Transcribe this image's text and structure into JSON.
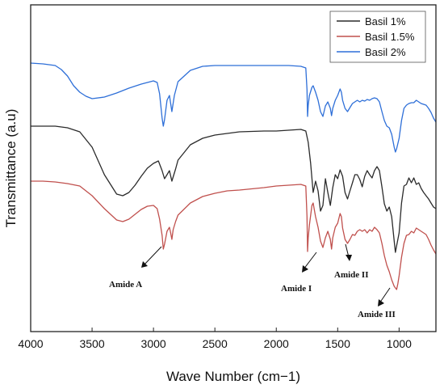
{
  "chart_data": {
    "type": "line",
    "title": "",
    "xlabel": "Wave Number (cm−1)",
    "ylabel": "Transmittance (a.u)",
    "xlim": [
      4000,
      700
    ],
    "x_reversed": true,
    "y_ticks_shown": false,
    "y_units": "arbitrary, offset traces",
    "grid": false,
    "legend_position": "top-right",
    "x_ticks": [
      "4000",
      "3500",
      "3000",
      "2500",
      "2000",
      "1500",
      "1000"
    ],
    "x_tick_values": [
      4000,
      3500,
      3000,
      2500,
      2000,
      1500,
      1000
    ],
    "series": [
      {
        "name": "Basil 1%",
        "color": "#2b2b2b",
        "points": [
          [
            4000,
            150
          ],
          [
            3900,
            150
          ],
          [
            3800,
            150
          ],
          [
            3700,
            152
          ],
          [
            3600,
            157
          ],
          [
            3500,
            176
          ],
          [
            3400,
            210
          ],
          [
            3300,
            234
          ],
          [
            3250,
            236
          ],
          [
            3200,
            232
          ],
          [
            3150,
            223
          ],
          [
            3100,
            212
          ],
          [
            3050,
            202
          ],
          [
            3000,
            196
          ],
          [
            2960,
            193
          ],
          [
            2930,
            205
          ],
          [
            2910,
            215
          ],
          [
            2890,
            210
          ],
          [
            2870,
            205
          ],
          [
            2850,
            218
          ],
          [
            2820,
            203
          ],
          [
            2800,
            192
          ],
          [
            2700,
            173
          ],
          [
            2600,
            165
          ],
          [
            2500,
            161
          ],
          [
            2300,
            157
          ],
          [
            2100,
            156
          ],
          [
            2000,
            156
          ],
          [
            1900,
            155
          ],
          [
            1800,
            154
          ],
          [
            1760,
            156
          ],
          [
            1740,
            170
          ],
          [
            1720,
            196
          ],
          [
            1700,
            232
          ],
          [
            1680,
            218
          ],
          [
            1660,
            230
          ],
          [
            1640,
            255
          ],
          [
            1620,
            248
          ],
          [
            1600,
            215
          ],
          [
            1580,
            232
          ],
          [
            1560,
            248
          ],
          [
            1540,
            226
          ],
          [
            1520,
            210
          ],
          [
            1500,
            215
          ],
          [
            1480,
            204
          ],
          [
            1460,
            212
          ],
          [
            1440,
            232
          ],
          [
            1420,
            240
          ],
          [
            1400,
            230
          ],
          [
            1380,
            220
          ],
          [
            1360,
            210
          ],
          [
            1340,
            210
          ],
          [
            1320,
            216
          ],
          [
            1300,
            225
          ],
          [
            1280,
            212
          ],
          [
            1260,
            205
          ],
          [
            1240,
            210
          ],
          [
            1220,
            214
          ],
          [
            1200,
            205
          ],
          [
            1180,
            200
          ],
          [
            1160,
            205
          ],
          [
            1140,
            225
          ],
          [
            1120,
            246
          ],
          [
            1100,
            255
          ],
          [
            1080,
            250
          ],
          [
            1060,
            262
          ],
          [
            1040,
            292
          ],
          [
            1030,
            306
          ],
          [
            1020,
            298
          ],
          [
            1000,
            282
          ],
          [
            980,
            245
          ],
          [
            960,
            224
          ],
          [
            940,
            222
          ],
          [
            920,
            214
          ],
          [
            900,
            220
          ],
          [
            880,
            214
          ],
          [
            860,
            222
          ],
          [
            840,
            220
          ],
          [
            820,
            227
          ],
          [
            800,
            232
          ],
          [
            780,
            236
          ],
          [
            760,
            240
          ],
          [
            740,
            245
          ],
          [
            720,
            250
          ],
          [
            700,
            252
          ]
        ]
      },
      {
        "name": "Basil 1.5%",
        "color": "#c0504d",
        "points": [
          [
            4000,
            218
          ],
          [
            3900,
            218
          ],
          [
            3800,
            219
          ],
          [
            3700,
            221
          ],
          [
            3600,
            224
          ],
          [
            3500,
            236
          ],
          [
            3400,
            252
          ],
          [
            3300,
            266
          ],
          [
            3250,
            268
          ],
          [
            3200,
            265
          ],
          [
            3150,
            259
          ],
          [
            3100,
            253
          ],
          [
            3050,
            249
          ],
          [
            3000,
            248
          ],
          [
            2970,
            252
          ],
          [
            2950,
            265
          ],
          [
            2930,
            285
          ],
          [
            2920,
            302
          ],
          [
            2910,
            296
          ],
          [
            2890,
            280
          ],
          [
            2870,
            275
          ],
          [
            2860,
            282
          ],
          [
            2850,
            290
          ],
          [
            2840,
            278
          ],
          [
            2820,
            268
          ],
          [
            2800,
            260
          ],
          [
            2700,
            245
          ],
          [
            2600,
            237
          ],
          [
            2500,
            233
          ],
          [
            2400,
            230
          ],
          [
            2300,
            229
          ],
          [
            2100,
            226
          ],
          [
            2000,
            224
          ],
          [
            1900,
            223
          ],
          [
            1800,
            222
          ],
          [
            1760,
            224
          ],
          [
            1750,
            262
          ],
          [
            1745,
            305
          ],
          [
            1740,
            288
          ],
          [
            1730,
            272
          ],
          [
            1710,
            248
          ],
          [
            1700,
            245
          ],
          [
            1680,
            262
          ],
          [
            1660,
            275
          ],
          [
            1640,
            292
          ],
          [
            1620,
            300
          ],
          [
            1600,
            288
          ],
          [
            1580,
            280
          ],
          [
            1560,
            290
          ],
          [
            1550,
            302
          ],
          [
            1540,
            288
          ],
          [
            1520,
            275
          ],
          [
            1500,
            270
          ],
          [
            1480,
            258
          ],
          [
            1470,
            262
          ],
          [
            1460,
            276
          ],
          [
            1440,
            290
          ],
          [
            1420,
            295
          ],
          [
            1400,
            290
          ],
          [
            1380,
            284
          ],
          [
            1360,
            285
          ],
          [
            1340,
            280
          ],
          [
            1320,
            278
          ],
          [
            1300,
            280
          ],
          [
            1280,
            278
          ],
          [
            1260,
            282
          ],
          [
            1240,
            278
          ],
          [
            1220,
            280
          ],
          [
            1200,
            275
          ],
          [
            1180,
            278
          ],
          [
            1160,
            282
          ],
          [
            1140,
            295
          ],
          [
            1120,
            310
          ],
          [
            1100,
            322
          ],
          [
            1080,
            330
          ],
          [
            1060,
            340
          ],
          [
            1040,
            348
          ],
          [
            1020,
            352
          ],
          [
            1010,
            345
          ],
          [
            1000,
            335
          ],
          [
            980,
            312
          ],
          [
            960,
            295
          ],
          [
            940,
            285
          ],
          [
            920,
            284
          ],
          [
            900,
            280
          ],
          [
            880,
            282
          ],
          [
            860,
            276
          ],
          [
            840,
            278
          ],
          [
            820,
            280
          ],
          [
            800,
            282
          ],
          [
            780,
            284
          ],
          [
            760,
            290
          ],
          [
            740,
            297
          ],
          [
            720,
            303
          ],
          [
            700,
            308
          ]
        ]
      },
      {
        "name": "Basil 2%",
        "color": "#2e6fd8",
        "points": [
          [
            4000,
            72
          ],
          [
            3900,
            73
          ],
          [
            3800,
            75
          ],
          [
            3750,
            80
          ],
          [
            3700,
            88
          ],
          [
            3650,
            100
          ],
          [
            3600,
            108
          ],
          [
            3550,
            113
          ],
          [
            3500,
            116
          ],
          [
            3400,
            114
          ],
          [
            3300,
            109
          ],
          [
            3200,
            103
          ],
          [
            3100,
            98
          ],
          [
            3000,
            94
          ],
          [
            2970,
            96
          ],
          [
            2950,
            110
          ],
          [
            2930,
            140
          ],
          [
            2920,
            150
          ],
          [
            2910,
            142
          ],
          [
            2890,
            118
          ],
          [
            2870,
            112
          ],
          [
            2860,
            122
          ],
          [
            2850,
            132
          ],
          [
            2830,
            112
          ],
          [
            2800,
            95
          ],
          [
            2700,
            81
          ],
          [
            2600,
            76
          ],
          [
            2500,
            75
          ],
          [
            2300,
            75
          ],
          [
            2000,
            75
          ],
          [
            1900,
            75
          ],
          [
            1800,
            76
          ],
          [
            1760,
            78
          ],
          [
            1750,
            105
          ],
          [
            1745,
            138
          ],
          [
            1740,
            124
          ],
          [
            1730,
            112
          ],
          [
            1710,
            102
          ],
          [
            1700,
            100
          ],
          [
            1680,
            108
          ],
          [
            1660,
            118
          ],
          [
            1640,
            132
          ],
          [
            1620,
            138
          ],
          [
            1600,
            125
          ],
          [
            1580,
            120
          ],
          [
            1560,
            128
          ],
          [
            1550,
            137
          ],
          [
            1540,
            128
          ],
          [
            1520,
            118
          ],
          [
            1500,
            112
          ],
          [
            1480,
            104
          ],
          [
            1470,
            108
          ],
          [
            1460,
            118
          ],
          [
            1440,
            128
          ],
          [
            1420,
            132
          ],
          [
            1400,
            127
          ],
          [
            1380,
            122
          ],
          [
            1360,
            120
          ],
          [
            1340,
            118
          ],
          [
            1320,
            120
          ],
          [
            1300,
            118
          ],
          [
            1280,
            119
          ],
          [
            1260,
            117
          ],
          [
            1240,
            118
          ],
          [
            1220,
            116
          ],
          [
            1200,
            115
          ],
          [
            1180,
            116
          ],
          [
            1160,
            120
          ],
          [
            1140,
            132
          ],
          [
            1120,
            143
          ],
          [
            1100,
            150
          ],
          [
            1080,
            152
          ],
          [
            1060,
            160
          ],
          [
            1040,
            176
          ],
          [
            1030,
            182
          ],
          [
            1020,
            178
          ],
          [
            1000,
            165
          ],
          [
            980,
            143
          ],
          [
            960,
            128
          ],
          [
            940,
            124
          ],
          [
            920,
            122
          ],
          [
            900,
            121
          ],
          [
            880,
            121
          ],
          [
            860,
            118
          ],
          [
            840,
            120
          ],
          [
            820,
            122
          ],
          [
            800,
            123
          ],
          [
            780,
            124
          ],
          [
            760,
            128
          ],
          [
            740,
            133
          ],
          [
            720,
            140
          ],
          [
            700,
            145
          ]
        ]
      }
    ],
    "annotations": [
      {
        "text": "Amide A"
      },
      {
        "text": "Amide I"
      },
      {
        "text": "Amide II"
      },
      {
        "text": "Amide III"
      }
    ]
  }
}
